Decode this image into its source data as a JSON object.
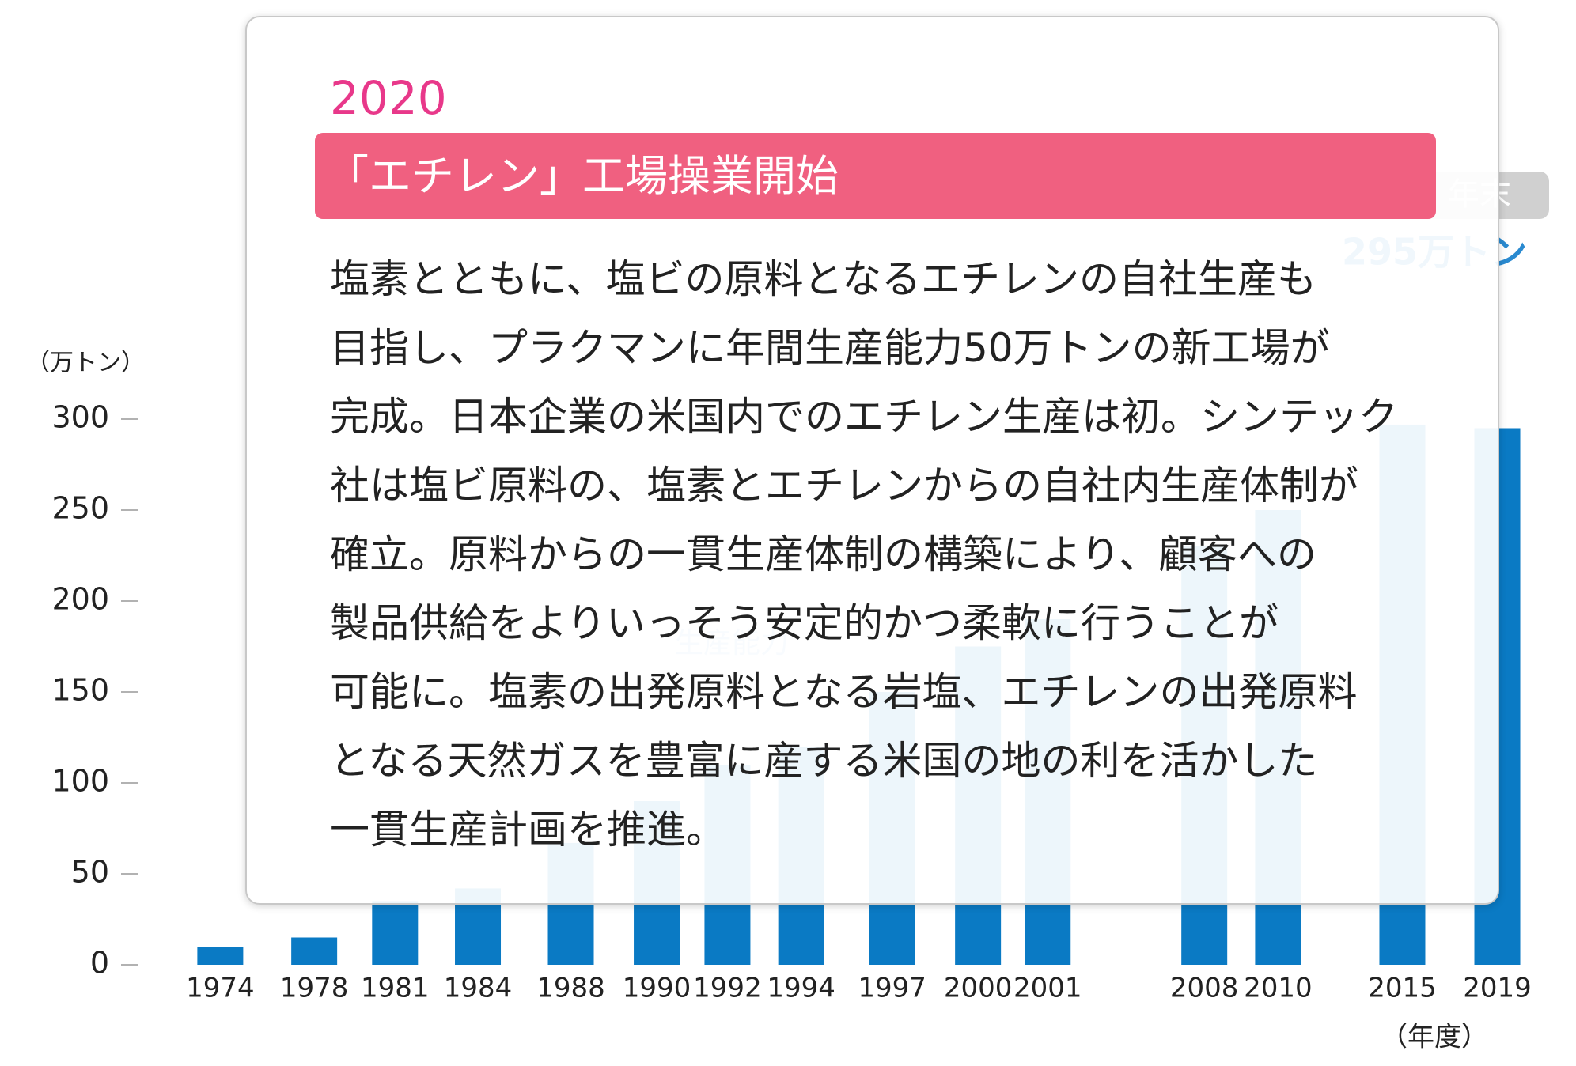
{
  "chart_data": {
    "type": "bar",
    "y_label": "（万トン）",
    "x_label": "（年度）",
    "categories": [
      "1974",
      "1978",
      "1981",
      "1984",
      "1988",
      "1990",
      "1992",
      "1994",
      "1997",
      "2000",
      "2001",
      "2008",
      "2010",
      "2015",
      "2019"
    ],
    "values": [
      10,
      15,
      35,
      42,
      67,
      90,
      110,
      120,
      150,
      175,
      190,
      230,
      250,
      297,
      295
    ],
    "color": "#0a7ac4",
    "ylim": [
      0,
      300
    ],
    "yticks": [
      0,
      50,
      100,
      150,
      200,
      250,
      300
    ],
    "annotations": [
      "年末",
      "295万トン",
      "生産能力"
    ]
  },
  "popup": {
    "year": "2020",
    "title": "「エチレン」工場操業開始",
    "body": [
      "塩素とともに、塩ビの原料となるエチレンの自社生産も",
      "目指し、プラクマンに年間生産能力50万トンの新工場が",
      "完成。日本企業の米国内でのエチレン生産は初。シンテック",
      "社は塩ビ原料の、塩素とエチレンからの自社内生産体制が",
      "確立。原料からの一貫生産体制の構築により、顧客への",
      "製品供給をよりいっそう安定的かつ柔軟に行うことが",
      "可能に。塩素の出発原料となる岩塩、エチレンの出発原料",
      "となる天然ガスを豊富に産する米国の地の利を活かした",
      "一貫生産計画を推進。"
    ]
  }
}
